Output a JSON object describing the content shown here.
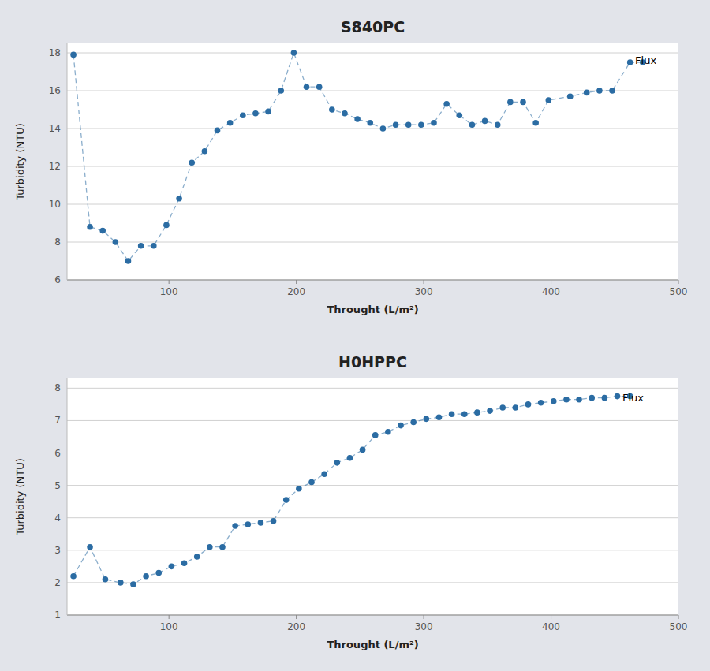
{
  "chart_data": [
    {
      "type": "line",
      "title": "S840PC",
      "x": [
        25,
        38,
        48,
        58,
        68,
        78,
        88,
        98,
        108,
        118,
        128,
        138,
        148,
        158,
        168,
        178,
        188,
        198,
        208,
        218,
        228,
        238,
        248,
        258,
        268,
        278,
        288,
        298,
        308,
        318,
        328,
        338,
        348,
        358,
        368,
        378,
        388,
        398,
        415,
        428,
        438,
        448,
        462,
        472
      ],
      "values": [
        17.9,
        8.8,
        8.6,
        8.0,
        7.0,
        7.8,
        7.8,
        8.9,
        10.3,
        12.2,
        12.8,
        13.9,
        14.3,
        14.7,
        14.8,
        14.9,
        16.0,
        18.0,
        16.2,
        16.2,
        15.0,
        14.8,
        14.5,
        14.3,
        14.0,
        14.2,
        14.2,
        14.2,
        14.3,
        15.3,
        14.7,
        14.2,
        14.4,
        14.2,
        15.4,
        15.4,
        14.3,
        15.5,
        15.7,
        15.9,
        16.0,
        16.0,
        17.5,
        17.5
      ],
      "x_label": "Throught (L/m²)",
      "y_label": "Turbidity (NTU)",
      "xlim": [
        20,
        500
      ],
      "ylim": [
        6,
        18.5
      ],
      "xticks": [
        100,
        200,
        300,
        400,
        500
      ],
      "yticks": [
        6,
        8,
        10,
        12,
        14,
        16,
        18
      ],
      "color": "#2b6ca3",
      "marker": "circle",
      "line_style": "dashed",
      "grid": "y",
      "annotations": [
        {
          "text": "Flux",
          "x": 466,
          "y": 17.6
        }
      ]
    },
    {
      "type": "line",
      "title": "H0HPPC",
      "x": [
        25,
        38,
        50,
        62,
        72,
        82,
        92,
        102,
        112,
        122,
        132,
        142,
        152,
        162,
        172,
        182,
        192,
        202,
        212,
        222,
        232,
        242,
        252,
        262,
        272,
        282,
        292,
        302,
        312,
        322,
        332,
        342,
        352,
        362,
        372,
        382,
        392,
        402,
        412,
        422,
        432,
        442,
        452,
        462
      ],
      "values": [
        2.2,
        3.1,
        2.1,
        2.0,
        1.95,
        2.2,
        2.3,
        2.5,
        2.6,
        2.8,
        3.1,
        3.1,
        3.75,
        3.8,
        3.85,
        3.9,
        4.55,
        4.9,
        5.1,
        5.35,
        5.7,
        5.85,
        6.1,
        6.55,
        6.65,
        6.85,
        6.95,
        7.05,
        7.1,
        7.2,
        7.2,
        7.25,
        7.3,
        7.4,
        7.4,
        7.5,
        7.55,
        7.6,
        7.65,
        7.65,
        7.7,
        7.7,
        7.75,
        7.75
      ],
      "x_label": "Throught (L/m²)",
      "y_label": "Turbidity (NTU)",
      "xlim": [
        20,
        500
      ],
      "ylim": [
        1,
        8.3
      ],
      "xticks": [
        100,
        200,
        300,
        400,
        500
      ],
      "yticks": [
        1,
        2,
        3,
        4,
        5,
        6,
        7,
        8
      ],
      "color": "#2b6ca3",
      "marker": "circle",
      "line_style": "dashed",
      "grid": "y",
      "annotations": [
        {
          "text": "Flux",
          "x": 456,
          "y": 7.7
        }
      ]
    }
  ]
}
